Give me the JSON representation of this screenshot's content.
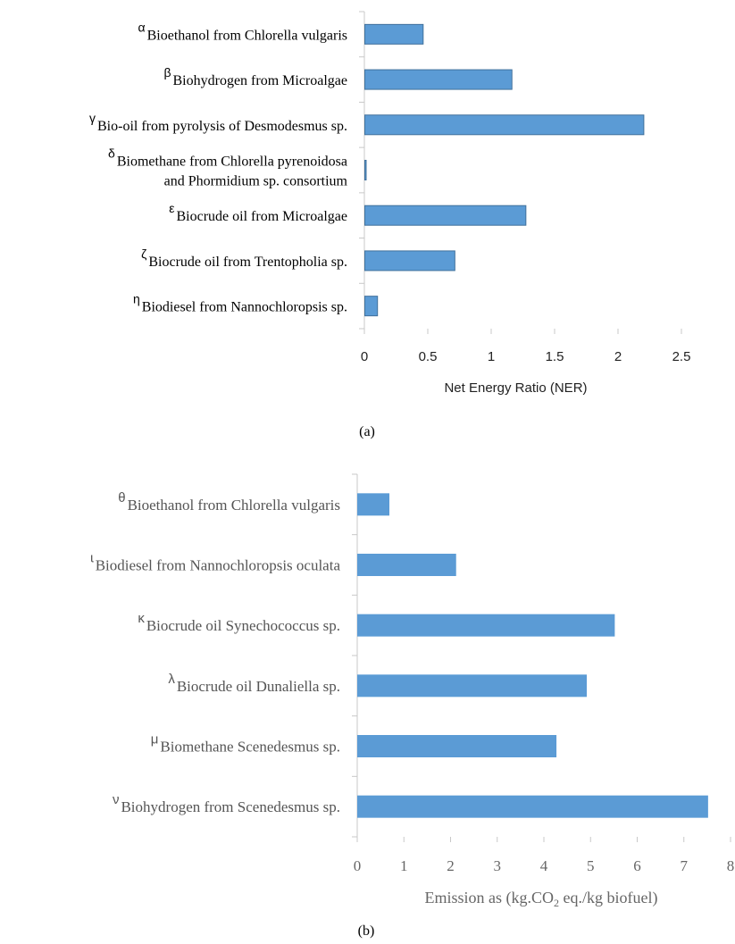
{
  "chart_data": [
    {
      "type": "bar",
      "orientation": "horizontal",
      "panel_label": "(a)",
      "xlabel": "Net Energy Ratio (NER)",
      "xlim": [
        0,
        2.5
      ],
      "xticks": [
        "0",
        "0.5",
        "1",
        "1.5",
        "2",
        "2.5"
      ],
      "categories": [
        {
          "marker": "α",
          "lines": [
            "Bioethanol from Chlorella vulgaris"
          ]
        },
        {
          "marker": "β",
          "lines": [
            "Biohydrogen from Microalgae"
          ]
        },
        {
          "marker": "γ",
          "lines": [
            "Bio-oil from pyrolysis of Desmodesmus sp."
          ]
        },
        {
          "marker": "δ",
          "lines": [
            "Biomethane from Chlorella pyrenoidosa",
            "and Phormidium sp. consortium"
          ]
        },
        {
          "marker": "ε",
          "lines": [
            "Biocrude oil from Microalgae"
          ]
        },
        {
          "marker": "ζ",
          "lines": [
            "Biocrude oil from Trentopholia sp."
          ]
        },
        {
          "marker": "η",
          "lines": [
            "Biodiesel from Nannochloropsis sp."
          ]
        }
      ],
      "values": [
        0.46,
        1.16,
        2.2,
        0.01,
        1.27,
        0.71,
        0.1
      ],
      "grid": false,
      "bar_color": "#5b9bd5",
      "bar_edge": "#41719c"
    },
    {
      "type": "bar",
      "orientation": "horizontal",
      "panel_label": "(b)",
      "xlabel": "Emission as (kg.CO₂ eq./kg biofuel)",
      "xlim": [
        0,
        8
      ],
      "xticks": [
        "0",
        "1",
        "2",
        "3",
        "4",
        "5",
        "6",
        "7",
        "8"
      ],
      "categories": [
        {
          "marker": "θ",
          "lines": [
            "Bioethanol from Chlorella vulgaris"
          ]
        },
        {
          "marker": "ɩ",
          "lines": [
            "Biodiesel from Nannochloropsis oculata"
          ]
        },
        {
          "marker": "κ",
          "lines": [
            "Biocrude oil Synechococcus sp."
          ]
        },
        {
          "marker": "λ",
          "lines": [
            "Biocrude oil Dunaliella sp."
          ]
        },
        {
          "marker": "μ",
          "lines": [
            "Biomethane Scenedesmus sp."
          ]
        },
        {
          "marker": "ν",
          "lines": [
            "Biohydrogen from Scenedesmus sp."
          ]
        }
      ],
      "values": [
        0.67,
        2.1,
        5.5,
        4.9,
        4.25,
        7.5
      ],
      "grid": false,
      "bar_color": "#5b9bd5",
      "bar_edge": "#5b9bd5"
    }
  ]
}
